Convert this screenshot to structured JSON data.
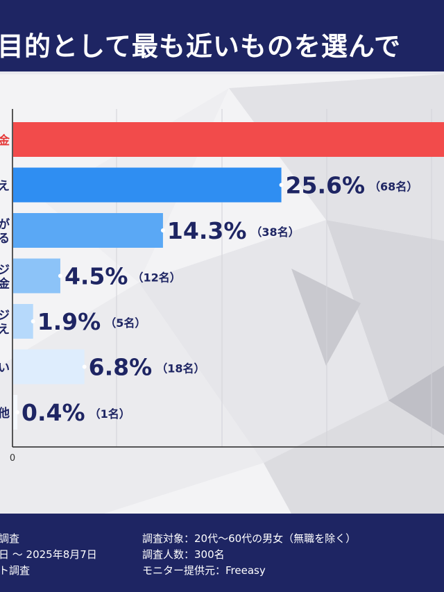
{
  "header": {
    "title": "目的として最も近いものを選んで"
  },
  "chart_data": {
    "type": "bar",
    "orientation": "horizontal",
    "categories": [
      "金",
      "え",
      "が\nる",
      "ジ\n金",
      "ジ\nえ",
      "い",
      "他"
    ],
    "values": [
      null,
      25.6,
      14.3,
      4.5,
      1.9,
      6.8,
      0.4
    ],
    "value_labels": [
      "",
      "25.6%",
      "14.3%",
      "4.5%",
      "1.9%",
      "6.8%",
      "0.4%"
    ],
    "count_labels": [
      "",
      "（68名）",
      "（38名）",
      "（12名）",
      "（5名）",
      "（18名）",
      "（1名）"
    ],
    "colors": [
      "#f24b4b",
      "#2f8ef2",
      "#5aa8f5",
      "#8cc3f8",
      "#b6d9fb",
      "#deedfd",
      "#f5f9ff"
    ],
    "category_colors": [
      "#e53b3b",
      "#1e2563",
      "#1e2563",
      "#1e2563",
      "#1e2563",
      "#1e2563",
      "#1e2563"
    ],
    "x_ticks": [
      "0"
    ],
    "grid": true
  },
  "footer": {
    "left": [
      "調査",
      "日 ～ 2025年8月7日",
      "ト調査"
    ],
    "right": [
      "調査対象：20代～60代の男女（無職を除く）",
      "調査人数：300名",
      "モニター提供元：Freeasy"
    ]
  }
}
